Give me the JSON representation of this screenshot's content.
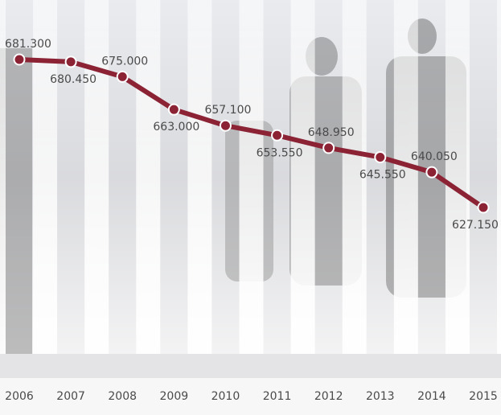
{
  "chart_data": {
    "type": "line",
    "categories": [
      "2006",
      "2007",
      "2008",
      "2009",
      "2010",
      "2011",
      "2012",
      "2013",
      "2014",
      "2015"
    ],
    "values": [
      681300,
      680450,
      675000,
      663000,
      657100,
      653550,
      648950,
      645550,
      640050,
      627150
    ],
    "value_labels": [
      "681.300",
      "680.450",
      "675.000",
      "663.000",
      "657.100",
      "653.550",
      "648.950",
      "645.550",
      "640.050",
      "627.150"
    ],
    "color": "#8b2335"
  }
}
